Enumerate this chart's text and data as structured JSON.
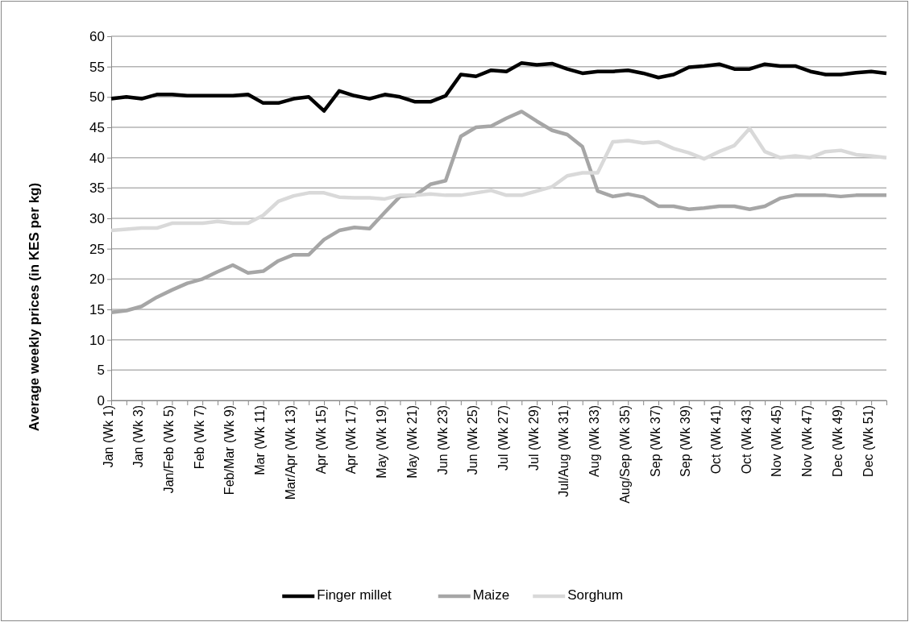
{
  "chart_data": {
    "type": "line",
    "ylabel": "Average weekly prices (in KES per kg)",
    "categories": [
      "Jan (Wk 1)",
      null,
      "Jan (Wk 3)",
      null,
      "Jan/Feb (Wk 5)",
      null,
      "Feb (Wk 7)",
      null,
      "Feb/Mar (Wk 9)",
      null,
      "Mar (Wk 11)",
      null,
      "Mar/Apr (Wk 13)",
      null,
      "Apr (Wk 15)",
      null,
      "Apr (Wk 17)",
      null,
      "May (Wk 19)",
      null,
      "May (Wk 21)",
      null,
      "Jun (Wk 23)",
      null,
      "Jun (Wk 25)",
      null,
      "Jul (Wk 27)",
      null,
      "Jul (Wk 29)",
      null,
      "Jul/Aug (Wk 31)",
      null,
      "Aug (Wk 33)",
      null,
      "Aug/Sep (Wk 35)",
      null,
      "Sep (Wk 37)",
      null,
      "Sep (Wk 39)",
      null,
      "Oct (Wk 41)",
      null,
      "Oct (Wk 43)",
      null,
      "Nov (Wk 45)",
      null,
      "Nov (Wk 47)",
      null,
      "Dec (Wk 49)",
      null,
      "Dec (Wk 51)",
      null
    ],
    "series": [
      {
        "name": "Finger millet",
        "color": "#000000",
        "values": [
          49.7,
          50,
          49.7,
          50.4,
          50.4,
          50.2,
          50.2,
          50.2,
          50.2,
          50.4,
          49,
          49,
          49.7,
          50,
          47.7,
          51,
          50.2,
          49.7,
          50.4,
          50,
          49.2,
          49.2,
          50.2,
          53.7,
          53.4,
          54.4,
          54.2,
          55.6,
          55.3,
          55.5,
          54.6,
          53.9,
          54.2,
          54.2,
          54.4,
          53.9,
          53.2,
          53.7,
          54.9,
          55.1,
          55.4,
          54.6,
          54.6,
          55.4,
          55.1,
          55.1,
          54.2,
          53.7,
          53.7,
          54,
          54.2,
          53.9
        ]
      },
      {
        "name": "Maize",
        "color": "#a6a6a6",
        "values": [
          14.5,
          14.8,
          15.5,
          17,
          18.2,
          19.3,
          20,
          21.2,
          22.3,
          21,
          21.3,
          23,
          24,
          24,
          26.5,
          28,
          28.5,
          28.3,
          31,
          33.6,
          33.8,
          35.6,
          36.2,
          43.5,
          45,
          45.2,
          46.5,
          47.6,
          46,
          44.5,
          43.8,
          41.8,
          34.5,
          33.6,
          34,
          33.5,
          32,
          32,
          31.5,
          31.7,
          32,
          32,
          31.5,
          32,
          33.3,
          33.8,
          33.8,
          33.8,
          33.6,
          33.8,
          33.8,
          33.8
        ]
      },
      {
        "name": "Sorghum",
        "color": "#d9d9d9",
        "values": [
          28,
          28.2,
          28.4,
          28.4,
          29.2,
          29.2,
          29.2,
          29.5,
          29.2,
          29.2,
          30.5,
          32.8,
          33.7,
          34.2,
          34.2,
          33.5,
          33.4,
          33.4,
          33.2,
          33.8,
          33.8,
          34,
          33.8,
          33.8,
          34.2,
          34.6,
          33.8,
          33.8,
          34.5,
          35.2,
          37,
          37.5,
          37.5,
          42.6,
          42.8,
          42.4,
          42.6,
          41.5,
          40.8,
          39.8,
          41,
          42,
          44.8,
          41,
          40,
          40.3,
          40,
          41,
          41.2,
          40.5,
          40.3,
          40
        ]
      }
    ],
    "ylim": [
      0,
      60
    ],
    "yticks": [
      0,
      5,
      10,
      15,
      20,
      25,
      30,
      35,
      40,
      45,
      50,
      55,
      60
    ],
    "grid": "y",
    "legend": "bottom",
    "line_style": "solid",
    "marker": "none"
  }
}
